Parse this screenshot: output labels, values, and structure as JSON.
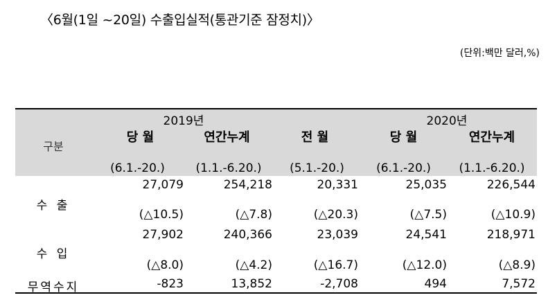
{
  "title": "〈6월(1일 ~20일) 수출입실적(통관기준 잠정치)〉",
  "unit": "(단위:백만 달러,%)",
  "header": {
    "row_label": "구분",
    "year_2019": "2019년",
    "year_2020": "2020년",
    "columns": [
      {
        "label": "당 월",
        "period": "(6.1.-20.)"
      },
      {
        "label": "연간누계",
        "period": "(1.1.-6.20.)"
      },
      {
        "label": "전 월",
        "period": "(5.1.-20.)"
      },
      {
        "label": "당 월",
        "period": "(6.1.-20.)"
      },
      {
        "label": "연간누계",
        "period": "(1.1.-6.20.)"
      }
    ]
  },
  "rows": [
    {
      "label": "수 출",
      "values": [
        "27,079",
        "254,218",
        "20,331",
        "25,035",
        "226,544"
      ],
      "changes": [
        "(△10.5)",
        "(△7.8)",
        "(△20.3)",
        "(△7.5)",
        "(△10.9)"
      ]
    },
    {
      "label": "수 입",
      "values": [
        "27,902",
        "240,366",
        "23,039",
        "24,541",
        "218,971"
      ],
      "changes": [
        "(△8.0)",
        "(△4.2)",
        "(△16.7)",
        "(△12.0)",
        "(△8.9)"
      ]
    },
    {
      "label": "무역수지",
      "values": [
        "-823",
        "13,852",
        "-2,708",
        "494",
        "7,572"
      ]
    }
  ]
}
